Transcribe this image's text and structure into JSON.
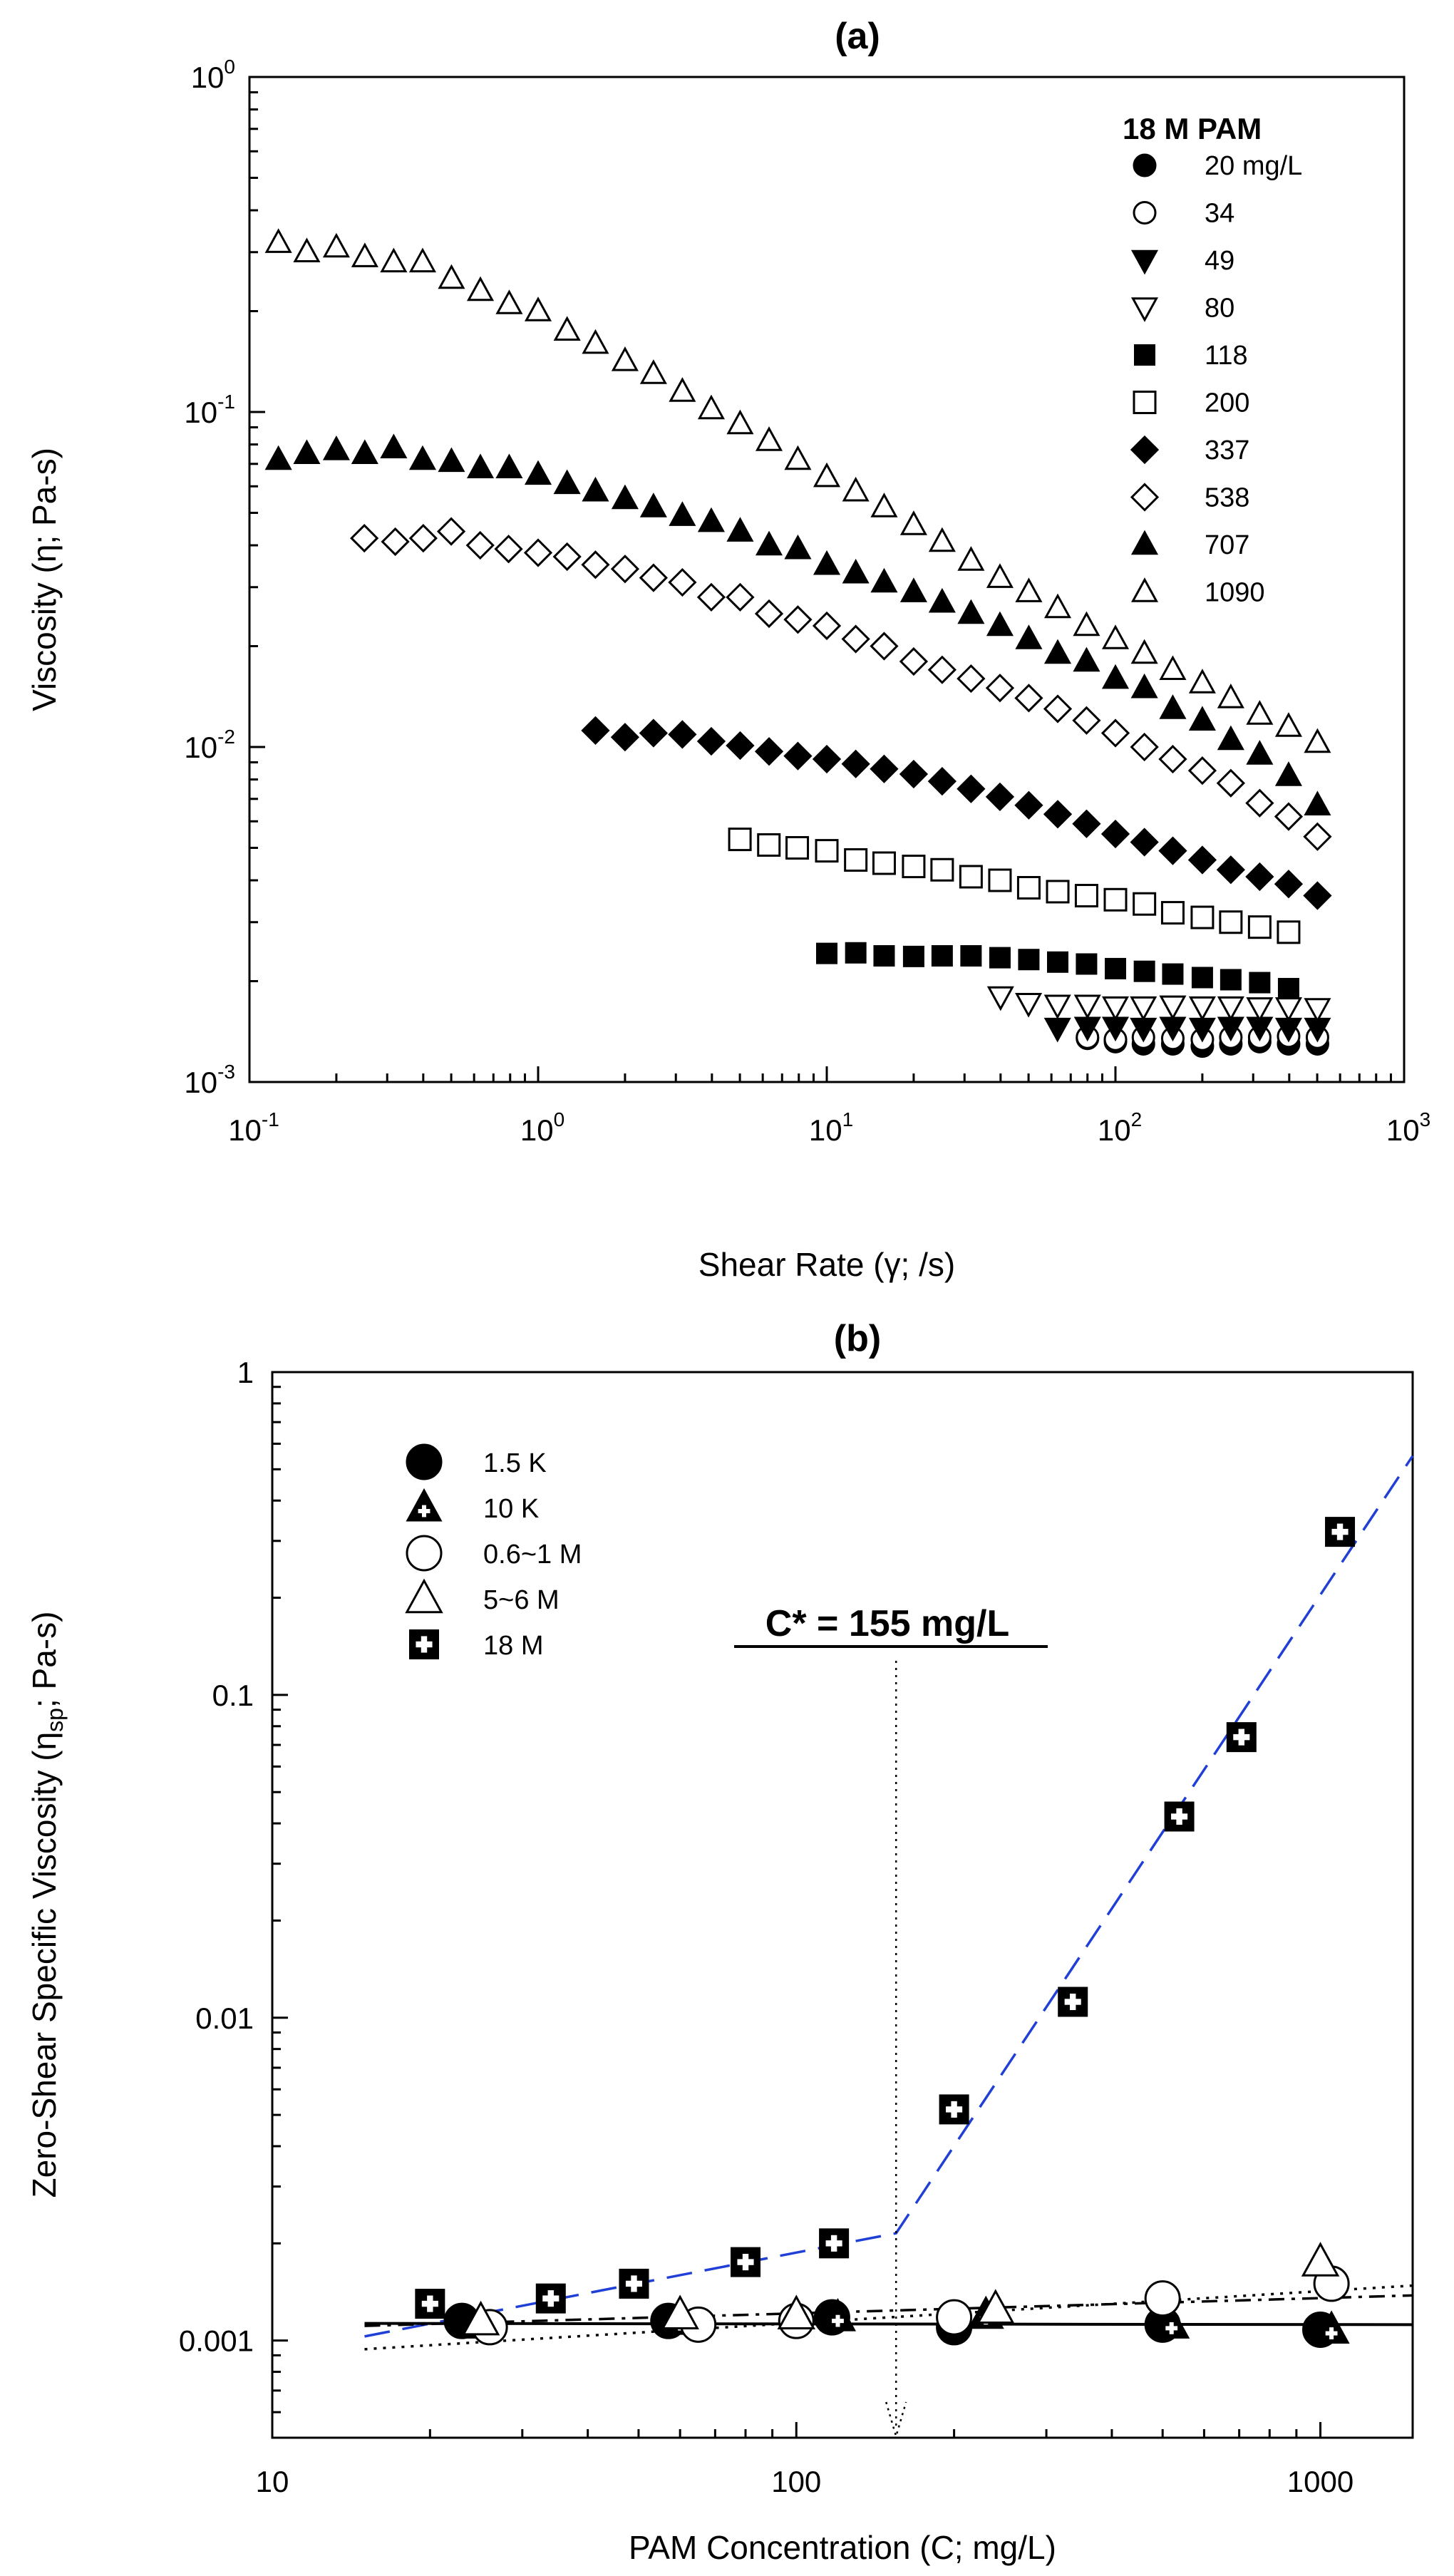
{
  "chart_data": [
    {
      "panel": "a",
      "type": "scatter",
      "title": "(a)",
      "xlabel": "Shear Rate (γ; /s)",
      "ylabel": "Viscosity (η; Pa-s)",
      "xscale": "log",
      "yscale": "log",
      "xlim": [
        0.1,
        1000
      ],
      "ylim": [
        0.001,
        1
      ],
      "xticks": [
        {
          "base": "10",
          "exp": "-1"
        },
        {
          "base": "10",
          "exp": "0"
        },
        {
          "base": "10",
          "exp": "1"
        },
        {
          "base": "10",
          "exp": "2"
        },
        {
          "base": "10",
          "exp": "3"
        }
      ],
      "yticks": [
        {
          "base": "10",
          "exp": "-3"
        },
        {
          "base": "10",
          "exp": "-2"
        },
        {
          "base": "10",
          "exp": "-1"
        },
        {
          "base": "10",
          "exp": "0"
        }
      ],
      "legend_title": "18 M PAM",
      "legend_position": "top-right",
      "series": [
        {
          "name": "20 mg/L",
          "marker": "circle-filled",
          "x": [
            80,
            100,
            125,
            158,
            200,
            251,
            316,
            398,
            501
          ],
          "y": [
            0.00135,
            0.00132,
            0.0013,
            0.0013,
            0.00128,
            0.0013,
            0.00132,
            0.0013,
            0.0013
          ]
        },
        {
          "name": "34",
          "marker": "circle-open",
          "x": [
            80,
            100,
            125,
            158,
            200,
            251,
            316,
            398,
            501
          ],
          "y": [
            0.00136,
            0.00134,
            0.00136,
            0.00135,
            0.00134,
            0.00136,
            0.00136,
            0.00137,
            0.00136
          ]
        },
        {
          "name": "49",
          "marker": "triangle-down-filled",
          "x": [
            63,
            80,
            100,
            125,
            158,
            200,
            251,
            316,
            398,
            501
          ],
          "y": [
            0.00145,
            0.00146,
            0.00146,
            0.00145,
            0.00146,
            0.00145,
            0.00146,
            0.00146,
            0.00145,
            0.00145
          ]
        },
        {
          "name": "80",
          "marker": "triangle-down-open",
          "x": [
            40,
            50,
            63,
            80,
            100,
            125,
            158,
            200,
            251,
            316,
            398,
            501
          ],
          "y": [
            0.0018,
            0.00172,
            0.0017,
            0.0017,
            0.00168,
            0.00168,
            0.00169,
            0.00168,
            0.00168,
            0.00167,
            0.00167,
            0.00166
          ]
        },
        {
          "name": "118",
          "marker": "square-filled",
          "x": [
            10,
            12.6,
            15.8,
            20,
            25.1,
            31.6,
            39.8,
            50.1,
            63.1,
            79.4,
            100,
            126,
            158,
            200,
            251,
            316,
            398
          ],
          "y": [
            0.00242,
            0.00243,
            0.00238,
            0.00237,
            0.00238,
            0.00238,
            0.00235,
            0.00232,
            0.00228,
            0.00225,
            0.00218,
            0.00214,
            0.0021,
            0.00205,
            0.00202,
            0.00198,
            0.0019
          ]
        },
        {
          "name": "200",
          "marker": "square-open",
          "x": [
            5,
            6.3,
            7.9,
            10,
            12.6,
            15.8,
            20,
            25.1,
            31.6,
            39.8,
            50.1,
            63.1,
            79.4,
            100,
            126,
            158,
            200,
            251,
            316,
            398
          ],
          "y": [
            0.0053,
            0.0051,
            0.005,
            0.0049,
            0.0046,
            0.0045,
            0.0044,
            0.0043,
            0.0041,
            0.004,
            0.0038,
            0.0037,
            0.0036,
            0.0035,
            0.0034,
            0.0032,
            0.0031,
            0.003,
            0.0029,
            0.0028
          ]
        },
        {
          "name": "337",
          "marker": "diamond-filled",
          "x": [
            1.58,
            2,
            2.51,
            3.16,
            3.98,
            5.01,
            6.31,
            7.94,
            10,
            12.6,
            15.8,
            20,
            25.1,
            31.6,
            39.8,
            50.1,
            63.1,
            79.4,
            100,
            126,
            158,
            200,
            251,
            316,
            398,
            501
          ],
          "y": [
            0.0112,
            0.0107,
            0.011,
            0.0109,
            0.0104,
            0.0101,
            0.0097,
            0.0094,
            0.0092,
            0.0089,
            0.0086,
            0.0083,
            0.0079,
            0.0075,
            0.0071,
            0.0067,
            0.0063,
            0.0059,
            0.0055,
            0.0052,
            0.0049,
            0.0046,
            0.0043,
            0.0041,
            0.0039,
            0.0036
          ]
        },
        {
          "name": "538",
          "marker": "diamond-open",
          "x": [
            0.25,
            0.32,
            0.4,
            0.5,
            0.63,
            0.79,
            1,
            1.26,
            1.58,
            2,
            2.51,
            3.16,
            3.98,
            5.01,
            6.31,
            7.94,
            10,
            12.6,
            15.8,
            20,
            25.1,
            31.6,
            39.8,
            50.1,
            63.1,
            79.4,
            100,
            126,
            158,
            200,
            251,
            316,
            398,
            501
          ],
          "y": [
            0.042,
            0.041,
            0.042,
            0.044,
            0.04,
            0.039,
            0.038,
            0.037,
            0.035,
            0.034,
            0.032,
            0.031,
            0.028,
            0.028,
            0.025,
            0.024,
            0.023,
            0.021,
            0.02,
            0.018,
            0.017,
            0.016,
            0.015,
            0.014,
            0.013,
            0.012,
            0.011,
            0.01,
            0.0092,
            0.0085,
            0.0078,
            0.0068,
            0.0062,
            0.0054
          ]
        },
        {
          "name": "707",
          "marker": "triangle-up-filled",
          "x": [
            0.126,
            0.158,
            0.2,
            0.251,
            0.316,
            0.398,
            0.501,
            0.631,
            0.794,
            1,
            1.26,
            1.58,
            2,
            2.51,
            3.16,
            3.98,
            5.01,
            6.31,
            7.94,
            10,
            12.6,
            15.8,
            20,
            25.1,
            31.6,
            39.8,
            50.1,
            63.1,
            79.4,
            100,
            126,
            158,
            200,
            251,
            316,
            398,
            501
          ],
          "y": [
            0.072,
            0.075,
            0.077,
            0.075,
            0.078,
            0.072,
            0.071,
            0.068,
            0.068,
            0.065,
            0.061,
            0.058,
            0.055,
            0.052,
            0.049,
            0.047,
            0.044,
            0.04,
            0.039,
            0.035,
            0.033,
            0.031,
            0.029,
            0.027,
            0.025,
            0.023,
            0.021,
            0.019,
            0.018,
            0.016,
            0.015,
            0.013,
            0.012,
            0.0105,
            0.0095,
            0.0082,
            0.0067
          ]
        },
        {
          "name": "1090",
          "marker": "triangle-up-open",
          "x": [
            0.126,
            0.158,
            0.2,
            0.251,
            0.316,
            0.398,
            0.501,
            0.631,
            0.794,
            1,
            1.26,
            1.58,
            2,
            2.51,
            3.16,
            3.98,
            5.01,
            6.31,
            7.94,
            10,
            12.6,
            15.8,
            20,
            25.1,
            31.6,
            39.8,
            50.1,
            63.1,
            79.4,
            100,
            126,
            158,
            200,
            251,
            316,
            398,
            501
          ],
          "y": [
            0.32,
            0.3,
            0.31,
            0.29,
            0.28,
            0.28,
            0.25,
            0.23,
            0.21,
            0.2,
            0.175,
            0.16,
            0.142,
            0.13,
            0.115,
            0.102,
            0.092,
            0.082,
            0.072,
            0.064,
            0.058,
            0.052,
            0.046,
            0.041,
            0.036,
            0.032,
            0.029,
            0.026,
            0.023,
            0.021,
            0.019,
            0.017,
            0.0155,
            0.014,
            0.0125,
            0.0115,
            0.0103
          ]
        }
      ]
    },
    {
      "panel": "b",
      "type": "scatter",
      "title": "(b)",
      "xlabel": "PAM Concentration (C; mg/L)",
      "ylabel": "Zero-Shear Specific Viscosity (η",
      "ylabel_sub": "sp",
      "ylabel_tail": "; Pa-s)",
      "xscale": "log",
      "yscale": "log",
      "xlim": [
        10,
        1500
      ],
      "ylim": [
        0.0005,
        1
      ],
      "xticks": [
        "10",
        "100",
        "1000"
      ],
      "yticks": [
        "0.001",
        "0.01",
        "0.1",
        "1"
      ],
      "legend_position": "top-left",
      "annotation": "C* = 155 mg/L",
      "c_star": 155,
      "series": [
        {
          "name": "1.5 K",
          "marker": "circle-filled",
          "x": [
            23,
            57,
            117,
            200,
            500,
            1000
          ],
          "y": [
            0.00115,
            0.00115,
            0.00118,
            0.0011,
            0.00112,
            0.00108
          ]
        },
        {
          "name": "10 K",
          "marker": "triangle-cross",
          "x": [
            25,
            60,
            120,
            230,
            520,
            1050
          ],
          "y": [
            0.00112,
            0.00115,
            0.00118,
            0.0012,
            0.00112,
            0.00108
          ]
        },
        {
          "name": "0.6~1 M",
          "marker": "circle-open",
          "x": [
            26,
            65,
            100,
            200,
            500,
            1050
          ],
          "y": [
            0.0011,
            0.00112,
            0.00115,
            0.00118,
            0.00135,
            0.0015
          ]
        },
        {
          "name": "5~6 M",
          "marker": "triangle-up-open",
          "x": [
            25,
            60,
            100,
            240,
            1000
          ],
          "y": [
            0.00115,
            0.0012,
            0.0012,
            0.00125,
            0.00175
          ]
        },
        {
          "name": "18 M",
          "marker": "square-cross",
          "x": [
            20,
            34,
            49,
            80,
            118,
            200,
            337,
            538,
            707,
            1090
          ],
          "y": [
            0.0013,
            0.00135,
            0.0015,
            0.00175,
            0.002,
            0.0052,
            0.0112,
            0.042,
            0.074,
            0.32
          ]
        }
      ],
      "fit_lines": [
        {
          "name": "18 M fit",
          "color": "#1f3fd6",
          "style": "dashed",
          "x": [
            15,
            155,
            1500
          ],
          "y": [
            0.00103,
            0.00215,
            0.55
          ]
        },
        {
          "name": "1.5 K fit",
          "color": "#000000",
          "style": "solid",
          "x": [
            15,
            1500
          ],
          "y": [
            0.00113,
            0.00112
          ]
        },
        {
          "name": "10 K fit",
          "color": "#000000",
          "style": "dash-dot",
          "x": [
            15,
            1500
          ],
          "y": [
            0.00111,
            0.00138
          ]
        },
        {
          "name": "0.6~1 M fit",
          "color": "#000000",
          "style": "dotted",
          "x": [
            15,
            1500
          ],
          "y": [
            0.00094,
            0.00148
          ]
        }
      ]
    }
  ]
}
